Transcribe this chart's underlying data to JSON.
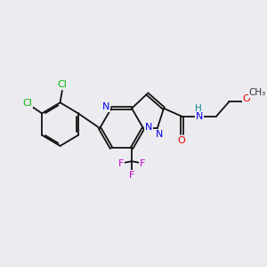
{
  "bg_color": "#ebebf0",
  "atom_colors": {
    "C": "#000000",
    "N": "#0000ee",
    "O": "#ee0000",
    "Cl": "#00bb00",
    "F": "#cc00cc",
    "H": "#008888"
  },
  "figsize": [
    3.0,
    3.0
  ],
  "dpi": 100,
  "bond_color": "#111111",
  "lw": 1.3,
  "fs": 8.0
}
